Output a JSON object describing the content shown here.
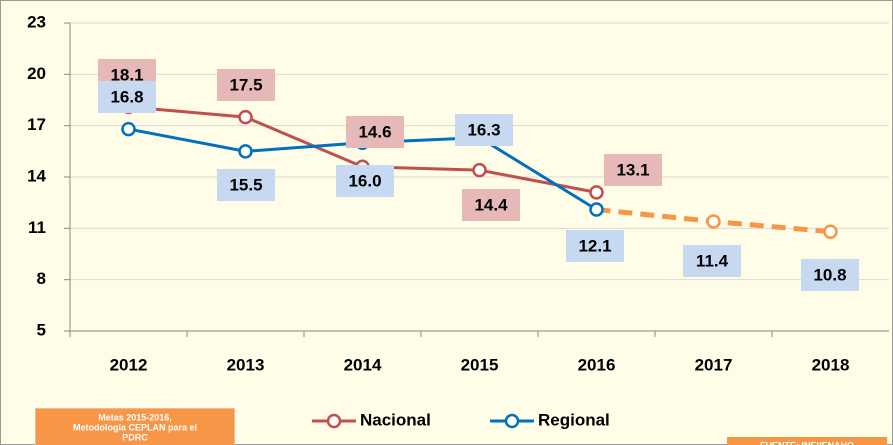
{
  "chart_data": {
    "type": "line",
    "categories": [
      "2012",
      "2013",
      "2014",
      "2015",
      "2016",
      "2017",
      "2018"
    ],
    "series": [
      {
        "name": "Nacional",
        "color": "#c0504d",
        "label_bg": "#e6b9b8",
        "values": [
          18.1,
          17.5,
          14.6,
          14.4,
          13.1,
          null,
          null
        ]
      },
      {
        "name": "Regional",
        "color": "#0070c0",
        "label_bg": "#c6d9f1",
        "values": [
          16.8,
          15.5,
          16.0,
          16.3,
          12.1,
          11.4,
          10.8
        ],
        "value_labels": [
          "16.8",
          "15.5",
          "16.0",
          "16.3",
          "12.1",
          "11.4",
          "10.8"
        ],
        "projection_from": 4,
        "projection_color": "#f79646"
      }
    ],
    "ylim": [
      5,
      23
    ],
    "yticks": [
      5,
      8,
      11,
      14,
      17,
      20,
      23
    ],
    "grid": true,
    "legend": "bottom",
    "note": [
      "Metas 2015-2016,",
      "Metodología CEPLAN para el",
      "PDRC"
    ],
    "source": "FUENTE: INEI/ENAHO"
  }
}
